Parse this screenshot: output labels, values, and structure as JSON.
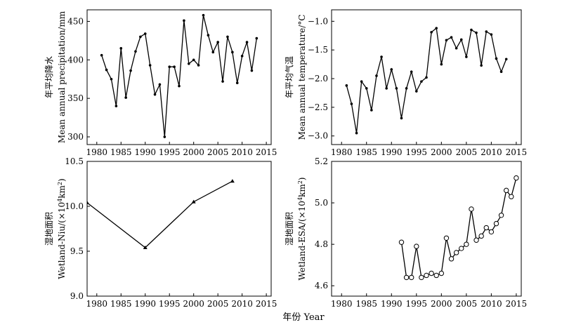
{
  "xlabel": "年份 Year",
  "chart_data": [
    {
      "type": "line",
      "ylabel_cn": "年平均降水",
      "ylabel_en": "Mean annual precipitation/mm",
      "xlim": [
        1978,
        2016
      ],
      "ylim": [
        290,
        465
      ],
      "xticks": [
        1980,
        1985,
        1990,
        1995,
        2000,
        2005,
        2010,
        2015
      ],
      "yticks": [
        300,
        350,
        400,
        450
      ],
      "marker": "dot",
      "x": [
        1981,
        1982,
        1983,
        1984,
        1985,
        1986,
        1987,
        1988,
        1989,
        1990,
        1991,
        1992,
        1993,
        1994,
        1995,
        1996,
        1997,
        1998,
        1999,
        2000,
        2001,
        2002,
        2003,
        2004,
        2005,
        2006,
        2007,
        2008,
        2009,
        2010,
        2011,
        2012,
        2013
      ],
      "y": [
        406,
        387,
        375,
        340,
        415,
        351,
        386,
        411,
        430,
        434,
        393,
        355,
        368,
        300,
        391,
        391,
        366,
        451,
        395,
        400,
        393,
        458,
        432,
        410,
        423,
        372,
        430,
        410,
        370,
        405,
        423,
        386,
        428
      ]
    },
    {
      "type": "line",
      "ylabel_cn": "年平均气温",
      "ylabel_en": "Mean annual temperature/°C",
      "xlim": [
        1978,
        2016
      ],
      "ylim": [
        -3.15,
        -0.8
      ],
      "xticks": [
        1980,
        1985,
        1990,
        1995,
        2000,
        2005,
        2010,
        2015
      ],
      "yticks": [
        -3.0,
        -2.5,
        -2.0,
        -1.5,
        -1.0
      ],
      "ytick_labels": [
        "−3.0",
        "−2.5",
        "−2.0",
        "−1.5",
        "−1.0"
      ],
      "marker": "dot",
      "x": [
        1981,
        1982,
        1983,
        1984,
        1985,
        1986,
        1987,
        1988,
        1989,
        1990,
        1991,
        1992,
        1993,
        1994,
        1995,
        1996,
        1997,
        1998,
        1999,
        2000,
        2001,
        2002,
        2003,
        2004,
        2005,
        2006,
        2007,
        2008,
        2009,
        2010,
        2011,
        2012,
        2013
      ],
      "y": [
        -2.12,
        -2.44,
        -2.95,
        -2.05,
        -2.17,
        -2.55,
        -1.95,
        -1.62,
        -2.17,
        -1.84,
        -2.17,
        -2.69,
        -2.17,
        -1.88,
        -2.22,
        -2.05,
        -1.98,
        -1.19,
        -1.12,
        -1.75,
        -1.33,
        -1.28,
        -1.47,
        -1.32,
        -1.62,
        -1.15,
        -1.2,
        -1.77,
        -1.18,
        -1.23,
        -1.65,
        -1.88,
        -1.66
      ]
    },
    {
      "type": "line",
      "ylabel_cn": "湿地面积",
      "ylabel_en_prefix": "Wetland-Niu/(×10",
      "ylabel_en_sup": "4",
      "ylabel_en_suffix": "km",
      "ylabel_en_sup2": "2",
      "ylabel_en_end": ")",
      "xlim": [
        1978,
        2016
      ],
      "ylim": [
        9.0,
        10.5
      ],
      "xticks": [
        1980,
        1985,
        1990,
        1995,
        2000,
        2005,
        2010,
        2015
      ],
      "yticks": [
        9.0,
        9.5,
        10.0,
        10.5
      ],
      "ytick_labels": [
        "9.0",
        "9.5",
        "10.0",
        "10.5"
      ],
      "marker": "triangle",
      "x": [
        1978,
        1990,
        2000,
        2008
      ],
      "y": [
        10.04,
        9.54,
        10.05,
        10.28
      ]
    },
    {
      "type": "line",
      "ylabel_cn": "湿地面积",
      "ylabel_en_prefix": "Wetland-ESA/(×10",
      "ylabel_en_sup": "4",
      "ylabel_en_suffix": "km",
      "ylabel_en_sup2": "2",
      "ylabel_en_end": ")",
      "xlim": [
        1978,
        2016
      ],
      "ylim": [
        4.55,
        5.2
      ],
      "xticks": [
        1980,
        1985,
        1990,
        1995,
        2000,
        2005,
        2010,
        2015
      ],
      "yticks": [
        4.6,
        4.8,
        5.0,
        5.2
      ],
      "ytick_labels": [
        "4.6",
        "4.8",
        "5.0",
        "5.2"
      ],
      "marker": "open-circle",
      "x": [
        1992,
        1993,
        1994,
        1995,
        1996,
        1997,
        1998,
        1999,
        2000,
        2001,
        2002,
        2003,
        2004,
        2005,
        2006,
        2007,
        2008,
        2009,
        2010,
        2011,
        2012,
        2013,
        2014,
        2015
      ],
      "y": [
        4.81,
        4.64,
        4.64,
        4.79,
        4.64,
        4.65,
        4.66,
        4.65,
        4.66,
        4.83,
        4.73,
        4.76,
        4.78,
        4.8,
        4.97,
        4.82,
        4.84,
        4.88,
        4.86,
        4.9,
        4.94,
        5.06,
        5.03,
        5.12
      ]
    }
  ]
}
